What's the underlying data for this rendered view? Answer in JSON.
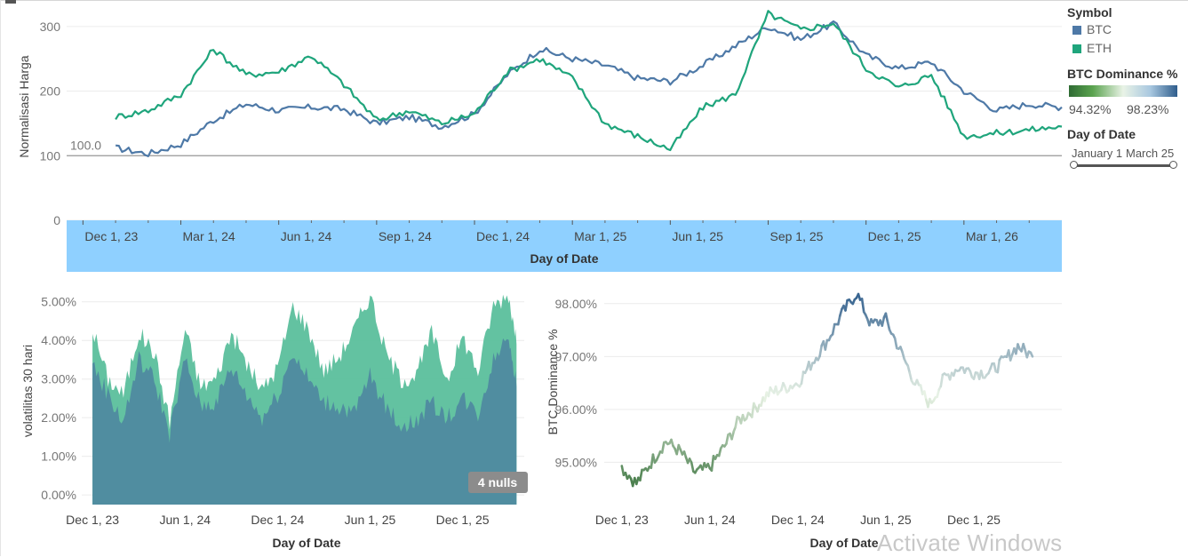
{
  "chart_data": [
    {
      "type": "line",
      "ylabel": "Normalisasi Harga",
      "xlabel": "Day of Date",
      "ylim": [
        0,
        330
      ],
      "yticks": [
        0,
        100,
        200,
        300
      ],
      "x_tick_labels": [
        "Dec 1, 23",
        "Mar 1, 24",
        "Jun 1, 24",
        "Sep 1, 24",
        "Dec 1, 24",
        "Mar 1, 25",
        "Jun 1, 25",
        "Sep 1, 25",
        "Dec 1, 25",
        "Mar 1, 26"
      ],
      "x_tick_months": [
        0,
        3,
        6,
        9,
        12,
        15,
        18,
        21,
        24,
        27
      ],
      "x_range_months": [
        -0.5,
        30
      ],
      "reference_line": {
        "value": 100,
        "label": "100.0"
      },
      "series": [
        {
          "name": "BTC",
          "color": "#4e79a7",
          "x_months": [
            1,
            2,
            3,
            4,
            5,
            6,
            7,
            8,
            9,
            10,
            11,
            12,
            13,
            14,
            15,
            16,
            17,
            18,
            19,
            20,
            21,
            22,
            23,
            24,
            25,
            26,
            27,
            28,
            29,
            30
          ],
          "values": [
            112,
            103,
            118,
            155,
            180,
            170,
            175,
            172,
            150,
            160,
            145,
            165,
            225,
            265,
            250,
            240,
            220,
            215,
            240,
            270,
            300,
            280,
            305,
            255,
            235,
            245,
            200,
            170,
            180,
            175
          ]
        },
        {
          "name": "ETH",
          "color": "#1fa57c",
          "x_months": [
            1,
            2,
            3,
            4,
            5,
            6,
            7,
            8,
            9,
            10,
            11,
            12,
            13,
            14,
            15,
            16,
            17,
            18,
            19,
            20,
            21,
            22,
            23,
            24,
            25,
            26,
            27,
            28,
            29,
            30
          ],
          "values": [
            160,
            170,
            195,
            265,
            225,
            230,
            255,
            210,
            155,
            170,
            150,
            165,
            230,
            250,
            220,
            150,
            130,
            110,
            175,
            195,
            320,
            295,
            305,
            235,
            205,
            225,
            130,
            135,
            140,
            145
          ]
        }
      ]
    },
    {
      "type": "area",
      "ylabel": "volatilitas 30 hari",
      "xlabel": "Day of Date",
      "ylim": [
        -0.25,
        5.5
      ],
      "yticks": [
        0,
        1,
        2,
        3,
        4,
        5
      ],
      "ytick_labels": [
        "0.00%",
        "1.00%",
        "2.00%",
        "3.00%",
        "4.00%",
        "5.00%"
      ],
      "x_tick_labels": [
        "Dec 1, 23",
        "Jun 1, 24",
        "Dec 1, 24",
        "Jun 1, 25",
        "Dec 1, 25"
      ],
      "x_tick_months": [
        0,
        6,
        12,
        18,
        24
      ],
      "x_range_months": [
        -0.7,
        28
      ],
      "annotation": "4 nulls",
      "series": [
        {
          "name": "ETH",
          "color": "#5bbf9c",
          "x_months": [
            0,
            1,
            2,
            3,
            4,
            5,
            6,
            7,
            8,
            9,
            10,
            11,
            12,
            13,
            14,
            15,
            16,
            17,
            18,
            19,
            20,
            21,
            22,
            23,
            24,
            25,
            26,
            27,
            27.5
          ],
          "values": [
            4.3,
            3.0,
            2.6,
            4.2,
            3.7,
            1.9,
            4.3,
            2.8,
            3.0,
            4.2,
            3.4,
            2.7,
            3.3,
            4.9,
            4.3,
            3.2,
            3.6,
            4.3,
            5.2,
            3.7,
            3.0,
            3.1,
            4.2,
            3.0,
            4.1,
            3.2,
            4.9,
            5.2,
            3.9
          ]
        },
        {
          "name": "BTC",
          "color": "#4f8aa0",
          "x_months": [
            0,
            1,
            2,
            3,
            4,
            5,
            6,
            7,
            8,
            9,
            10,
            11,
            12,
            13,
            14,
            15,
            16,
            17,
            18,
            19,
            20,
            21,
            22,
            23,
            24,
            25,
            26,
            27,
            27.5
          ],
          "values": [
            3.4,
            2.6,
            1.9,
            3.5,
            3.0,
            1.6,
            3.5,
            2.3,
            2.4,
            3.3,
            2.6,
            2.0,
            2.6,
            3.7,
            3.0,
            2.4,
            2.3,
            2.1,
            3.1,
            2.3,
            1.8,
            1.9,
            2.4,
            2.0,
            2.5,
            2.1,
            3.5,
            4.2,
            2.8
          ]
        }
      ]
    },
    {
      "type": "line",
      "ylabel": "BTC Dominance %",
      "xlabel": "Day of Date",
      "ylim": [
        94.2,
        98.4
      ],
      "yticks": [
        95,
        96,
        97,
        98
      ],
      "ytick_labels": [
        "95.00%",
        "96.00%",
        "97.00%",
        "98.00%"
      ],
      "x_tick_labels": [
        "Dec 1, 23",
        "Jun 1, 24",
        "Dec 1, 24",
        "Jun 1, 25",
        "Dec 1, 25"
      ],
      "x_tick_months": [
        0,
        6,
        12,
        18,
        24
      ],
      "x_range_months": [
        -1.2,
        30
      ],
      "color_scale": {
        "min": 94.32,
        "max": 98.23,
        "low_color": "#2f6b33",
        "mid_color": "#e9f3e6",
        "high_color": "#2f5d8c"
      },
      "series": [
        {
          "name": "BTC Dominance %",
          "x_months": [
            0,
            1,
            2,
            3,
            4,
            5,
            6,
            7,
            8,
            9,
            10,
            11,
            12,
            13,
            14,
            15,
            16,
            17,
            18,
            19,
            20,
            21,
            22,
            23,
            24,
            25,
            26,
            27,
            28
          ],
          "values": [
            94.9,
            94.6,
            95.0,
            95.4,
            95.2,
            94.8,
            94.9,
            95.3,
            95.8,
            96.0,
            96.3,
            96.4,
            96.5,
            96.9,
            97.3,
            97.8,
            98.2,
            97.6,
            97.7,
            97.1,
            96.5,
            96.1,
            96.6,
            96.8,
            96.7,
            96.7,
            96.9,
            97.2,
            97.0
          ]
        }
      ]
    }
  ],
  "legend": {
    "symbol_title": "Symbol",
    "items": [
      {
        "label": "BTC",
        "color": "#4e79a7"
      },
      {
        "label": "ETH",
        "color": "#1fa57c"
      }
    ],
    "dominance_title": "BTC Dominance %",
    "dominance_min_label": "94.32%",
    "dominance_max_label": "98.23%",
    "date_title": "Day of Date",
    "date_start_label": "January 1",
    "date_end_label": "March 25"
  },
  "watermark": "Activate Windows",
  "colors": {
    "axis_band": "#8fd0ff",
    "gridline": "#ececec",
    "reference_line": "#999999"
  }
}
